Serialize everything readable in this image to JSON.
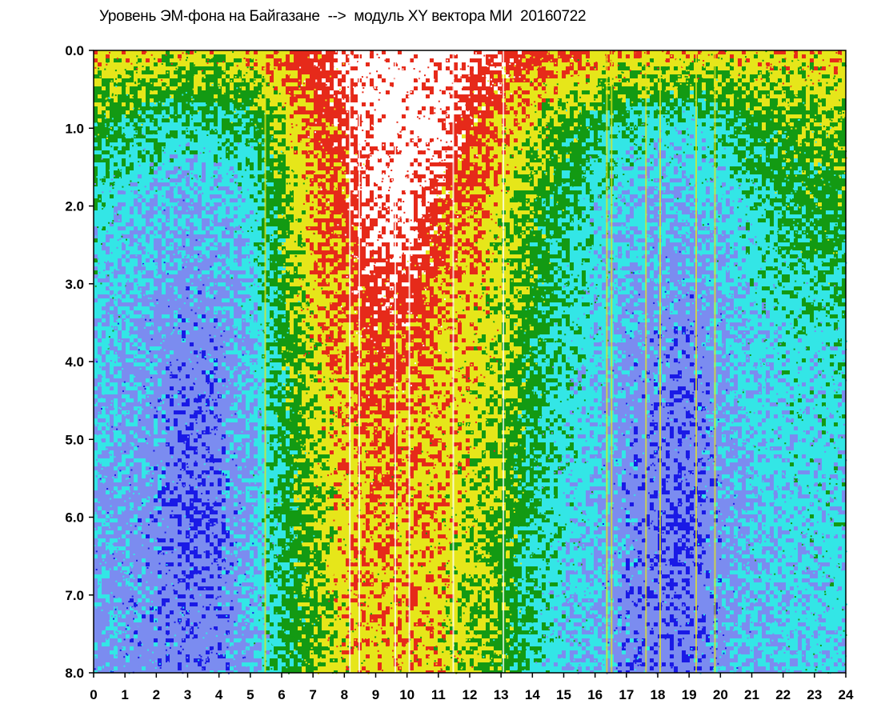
{
  "chart_data": {
    "type": "heatmap",
    "title": "Уровень ЭМ-фона на Байгазане  -->  модуль XY вектора МИ  20160722",
    "xlabel": "",
    "ylabel": "",
    "xlim": [
      0,
      24
    ],
    "ylim": [
      8.0,
      0.0
    ],
    "y_inverted": true,
    "x_ticks": [
      "0",
      "1",
      "2",
      "3",
      "4",
      "5",
      "6",
      "7",
      "8",
      "9",
      "10",
      "11",
      "12",
      "13",
      "14",
      "15",
      "16",
      "17",
      "18",
      "19",
      "20",
      "21",
      "22",
      "23",
      "24"
    ],
    "y_ticks": [
      "0.0",
      "1.0",
      "2.0",
      "3.0",
      "4.0",
      "5.0",
      "6.0",
      "7.0",
      "8.0"
    ],
    "color_scale": [
      "#1a1ae6",
      "#7b8cf0",
      "#33e6e6",
      "#139a13",
      "#e6e61a",
      "#e62a1a",
      "#ffffff"
    ],
    "colors": {
      "background": "#ffffff",
      "axis": "#000000"
    },
    "level_profile": {
      "description_units": "approximate dominant level (0=blue … 6=white) by hour and depth",
      "hours": [
        0,
        1,
        2,
        3,
        4,
        5,
        6,
        7,
        8,
        9,
        10,
        11,
        12,
        13,
        14,
        15,
        16,
        17,
        18,
        19,
        20,
        21,
        22,
        23,
        24
      ],
      "y0": [
        4.3,
        4.2,
        4.2,
        4.0,
        4.0,
        4.2,
        4.6,
        5.0,
        5.6,
        6.0,
        6.0,
        6.0,
        5.8,
        5.3,
        5.0,
        4.8,
        4.5,
        4.4,
        4.3,
        4.3,
        4.2,
        4.2,
        4.2,
        4.2,
        4.2
      ],
      "y1": [
        2.9,
        2.6,
        2.4,
        2.2,
        2.3,
        2.5,
        3.6,
        4.8,
        5.0,
        6.0,
        6.0,
        5.9,
        5.0,
        4.5,
        3.8,
        3.2,
        2.6,
        2.2,
        2.0,
        2.0,
        2.3,
        2.8,
        3.1,
        3.3,
        3.3
      ],
      "y2": [
        2.1,
        1.8,
        1.5,
        1.4,
        1.5,
        1.9,
        3.1,
        4.5,
        4.8,
        5.8,
        5.9,
        5.0,
        4.5,
        4.0,
        3.2,
        2.6,
        2.1,
        1.7,
        1.5,
        1.5,
        1.7,
        2.2,
        2.6,
        2.9,
        2.9
      ],
      "y4": [
        1.6,
        1.4,
        1.2,
        0.8,
        1.0,
        1.6,
        2.8,
        3.9,
        4.5,
        4.8,
        4.6,
        4.4,
        4.1,
        3.6,
        2.8,
        2.2,
        1.8,
        1.2,
        1.0,
        0.8,
        1.3,
        1.7,
        1.9,
        2.0,
        2.0
      ],
      "y6": [
        1.4,
        1.2,
        1.0,
        0.6,
        0.8,
        1.4,
        2.6,
        3.4,
        4.2,
        4.4,
        4.3,
        4.2,
        3.8,
        3.3,
        2.5,
        2.0,
        1.6,
        1.0,
        0.7,
        0.6,
        1.1,
        1.6,
        1.8,
        1.9,
        1.9
      ],
      "y8": [
        1.3,
        1.1,
        1.0,
        0.9,
        0.9,
        1.4,
        2.5,
        3.3,
        4.0,
        4.2,
        4.2,
        4.1,
        3.6,
        3.2,
        2.3,
        1.8,
        1.5,
        0.9,
        0.9,
        0.8,
        1.2,
        1.6,
        1.7,
        1.8,
        1.8
      ]
    }
  }
}
